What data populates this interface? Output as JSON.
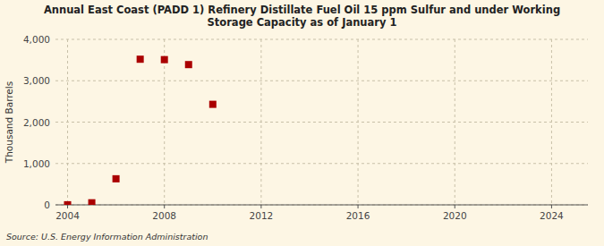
{
  "chart_data": {
    "type": "scatter",
    "title": "Annual East Coast (PADD 1) Refinery Distillate Fuel Oil 15 ppm Sulfur and under Working\nStorage Capacity as of January 1",
    "y_label": "Thousand Barrels",
    "annotations": [
      "Source: U.S. Energy Information Administration"
    ],
    "x": [
      2004,
      2005,
      2006,
      2007,
      2008,
      2009,
      2010
    ],
    "values": [
      2,
      50,
      630,
      3520,
      3510,
      3390,
      2430
    ],
    "color": "#aa0000",
    "marker": "square",
    "xlim": [
      2003.5,
      2025.5
    ],
    "ylim": [
      0,
      4000
    ],
    "xticks": [
      2004,
      2008,
      2012,
      2016,
      2020,
      2024
    ],
    "yticks": [
      0,
      {
        "value": 1000,
        "label": "1,000"
      },
      {
        "value": 2000,
        "label": "2,000"
      },
      {
        "value": 3000,
        "label": "3,000"
      },
      {
        "value": 4000,
        "label": "4,000"
      }
    ],
    "grid": true
  }
}
